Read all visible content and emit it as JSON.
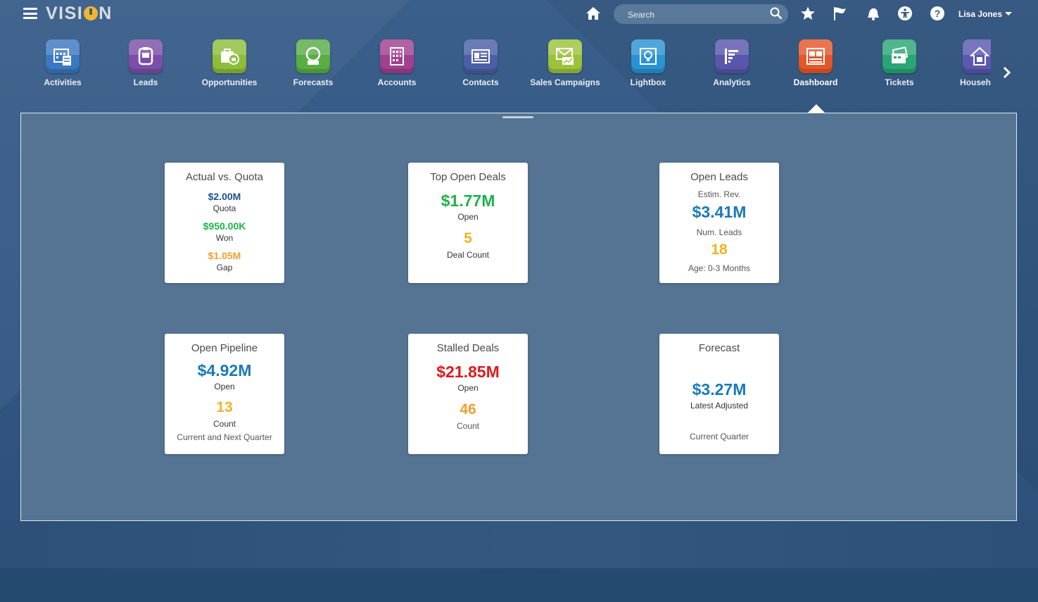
{
  "header": {
    "logo": "VISION",
    "search_placeholder": "Search",
    "user_name": "Lisa Jones",
    "icons": [
      "menu-icon",
      "home-icon",
      "search-icon",
      "favorites-star-icon",
      "flag-icon",
      "notifications-bell-icon",
      "accessibility-icon",
      "help-icon"
    ]
  },
  "springboard": {
    "apps": [
      {
        "label": "Activities",
        "color": "#3a78c2"
      },
      {
        "label": "Leads",
        "color": "#7b4fa8"
      },
      {
        "label": "Opportunities",
        "color": "#8dbd3a"
      },
      {
        "label": "Forecasts",
        "color": "#5aad45"
      },
      {
        "label": "Accounts",
        "color": "#a0408f"
      },
      {
        "label": "Contacts",
        "color": "#4b5fa6"
      },
      {
        "label": "Sales Campaigns",
        "color": "#9cc23b"
      },
      {
        "label": "Lightbox",
        "color": "#2a93d4"
      },
      {
        "label": "Analytics",
        "color": "#5956ac"
      },
      {
        "label": "Dashboard",
        "color": "#e5572a"
      },
      {
        "label": "Tickets",
        "color": "#2aa676"
      },
      {
        "label": "Househ",
        "color": "#5a58b0"
      }
    ],
    "active": "Dashboard"
  },
  "cards": {
    "quota": {
      "title": "Actual vs. Quota",
      "quota_value": "$2.00M",
      "quota_label": "Quota",
      "won_value": "$950.00K",
      "won_label": "Won",
      "gap_value": "$1.05M",
      "gap_label": "Gap"
    },
    "deals": {
      "title": "Top Open Deals",
      "open_value": "$1.77M",
      "open_label": "Open",
      "count_value": "5",
      "count_label": "Deal Count"
    },
    "leads": {
      "title": "Open Leads",
      "rev_label": "Estim. Rev.",
      "rev_value": "$3.41M",
      "num_label": "Num. Leads",
      "num_value": "18",
      "age_label": "Age: 0-3 Months"
    },
    "pipeline": {
      "title": "Open Pipeline",
      "open_value": "$4.92M",
      "open_label": "Open",
      "count_value": "13",
      "count_label": "Count",
      "period": "Current and Next Quarter"
    },
    "stalled": {
      "title": "Stalled Deals",
      "open_value": "$21.85M",
      "open_label": "Open",
      "count_value": "46",
      "count_label": "Count"
    },
    "forecast": {
      "title": "Forecast",
      "value": "$3.27M",
      "value_label": "Latest Adjusted",
      "period": "Current Quarter"
    }
  },
  "colors": {
    "blue": "#1a7ab8",
    "navy": "#1e4f8a",
    "green": "#1db34a",
    "orange": "#f0a02c",
    "yellow": "#f2b321",
    "red": "#e0191b"
  }
}
